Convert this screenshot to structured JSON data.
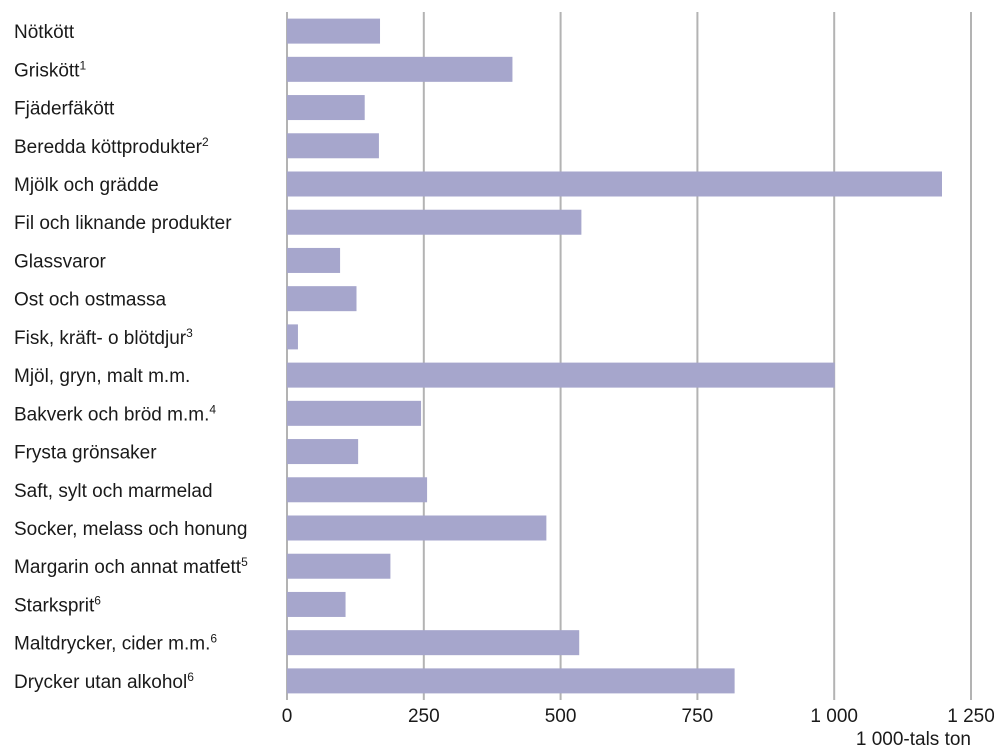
{
  "chart_data": {
    "type": "bar",
    "orientation": "horizontal",
    "categories": [
      {
        "label": "Nötkött",
        "sup": ""
      },
      {
        "label": "Griskött",
        "sup": "1"
      },
      {
        "label": "Fjäderfäkött",
        "sup": ""
      },
      {
        "label": "Beredda köttprodukter",
        "sup": "2"
      },
      {
        "label": "Mjölk och grädde",
        "sup": ""
      },
      {
        "label": "Fil och liknande produkter",
        "sup": ""
      },
      {
        "label": "Glassvaror",
        "sup": ""
      },
      {
        "label": "Ost och ostmassa",
        "sup": ""
      },
      {
        "label": "Fisk, kräft- o blötdjur",
        "sup": "3"
      },
      {
        "label": "Mjöl, gryn, malt m.m.",
        "sup": ""
      },
      {
        "label": "Bakverk och bröd m.m.",
        "sup": "4"
      },
      {
        "label": "Frysta grönsaker",
        "sup": ""
      },
      {
        "label": "Saft, sylt och marmelad",
        "sup": ""
      },
      {
        "label": "Socker, melass och honung",
        "sup": ""
      },
      {
        "label": "Margarin och annat matfett",
        "sup": "5"
      },
      {
        "label": "Starksprit",
        "sup": "6"
      },
      {
        "label": "Maltdrycker, cider m.m.",
        "sup": "6"
      },
      {
        "label": "Drycker utan alkohol",
        "sup": "6"
      }
    ],
    "values": [
      170,
      412,
      142,
      168,
      1197,
      538,
      97,
      127,
      20,
      1001,
      245,
      130,
      256,
      474,
      189,
      107,
      534,
      818
    ],
    "xlim": [
      0,
      1250
    ],
    "ticks": [
      0,
      250,
      500,
      750,
      1000,
      1250
    ],
    "tick_labels": [
      "0",
      "250",
      "500",
      "750",
      "1 000",
      "1 250"
    ],
    "xlabel": "1 000-tals ton",
    "grid": true,
    "bar_color": "#a6a6cc",
    "grid_color": "#b3b3b3"
  }
}
